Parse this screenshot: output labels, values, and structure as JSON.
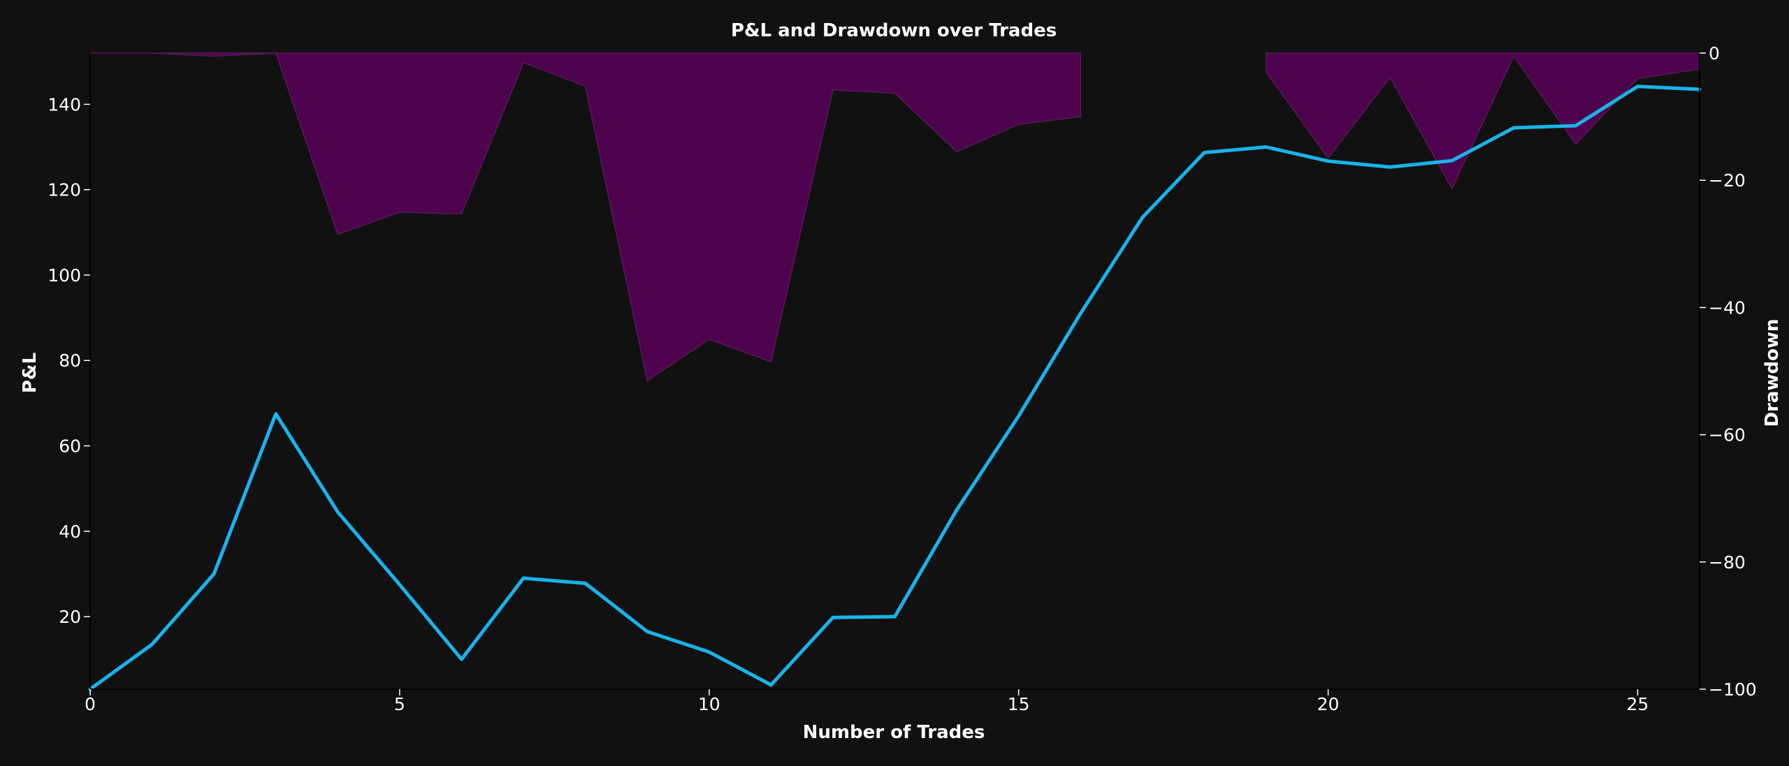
{
  "chart_data": {
    "type": "line",
    "title": "P&L and Drawdown over Trades",
    "xlabel": "Number of Trades",
    "ylabel": "P&L",
    "y2label": "Drawdown",
    "xlim": [
      0,
      26
    ],
    "ylim": [
      3,
      152
    ],
    "y2lim": [
      -100,
      0
    ],
    "x_ticks": [
      0,
      5,
      10,
      15,
      20,
      25
    ],
    "y_ticks": [
      20,
      40,
      60,
      80,
      100,
      120,
      140
    ],
    "y2_ticks": [
      0,
      -20,
      -40,
      -60,
      -80,
      -100
    ],
    "grid": false,
    "colors": {
      "pnl_line": "#1ab3eb",
      "drawdown_fill": "#4e034e",
      "background": "#111111"
    },
    "series": [
      {
        "axis": "left",
        "kind": "line",
        "x": [
          0,
          1,
          2,
          3,
          4,
          5,
          6,
          7,
          8,
          9,
          10,
          11,
          12,
          13,
          14,
          15,
          16,
          17,
          18,
          19,
          20,
          21,
          22,
          23,
          24,
          25,
          26
        ],
        "values": [
          3,
          13.5,
          30,
          67.5,
          44.5,
          27.5,
          10,
          29,
          27.8,
          16.5,
          11.7,
          4,
          19.8,
          20,
          45,
          67,
          91,
          113.5,
          128.7,
          130,
          126.7,
          125.3,
          126.8,
          134.5,
          135,
          144.2,
          143.5
        ]
      },
      {
        "axis": "right",
        "kind": "area",
        "x": [
          0,
          1,
          2,
          3,
          4,
          5,
          6,
          7,
          8,
          9,
          10,
          11,
          12,
          13,
          14,
          15,
          16,
          17,
          18,
          19,
          20,
          21,
          22,
          23,
          24,
          25,
          26
        ],
        "values": [
          0,
          0,
          -0.5,
          0,
          -28.5,
          -25,
          -25.3,
          -1.5,
          -5.2,
          -51.5,
          -45,
          -48.5,
          -5.8,
          -6.3,
          -15.5,
          -11.2,
          -10,
          null,
          null,
          -3,
          -16.5,
          -3.8,
          -21.3,
          -0.5,
          -14.3,
          -4,
          -2.5
        ]
      }
    ]
  }
}
